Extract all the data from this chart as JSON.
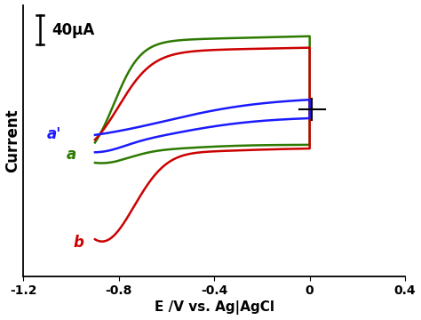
{
  "title": "",
  "xlabel": "E /V vs. Ag|AgCl",
  "ylabel": "Current",
  "xlim": [
    -1.2,
    0.4
  ],
  "ylim": [
    -1.0,
    1.6
  ],
  "background_color": "#ffffff",
  "scalebar_text": "40μA",
  "curve_colors": {
    "blue": "#1a1aff",
    "green": "#2d7a00",
    "red": "#cc0000"
  },
  "labels": {
    "a_prime": "a'",
    "a": "a",
    "b": "b"
  },
  "xticks": [
    -1.2,
    -0.8,
    -0.4,
    0.0,
    0.4
  ]
}
